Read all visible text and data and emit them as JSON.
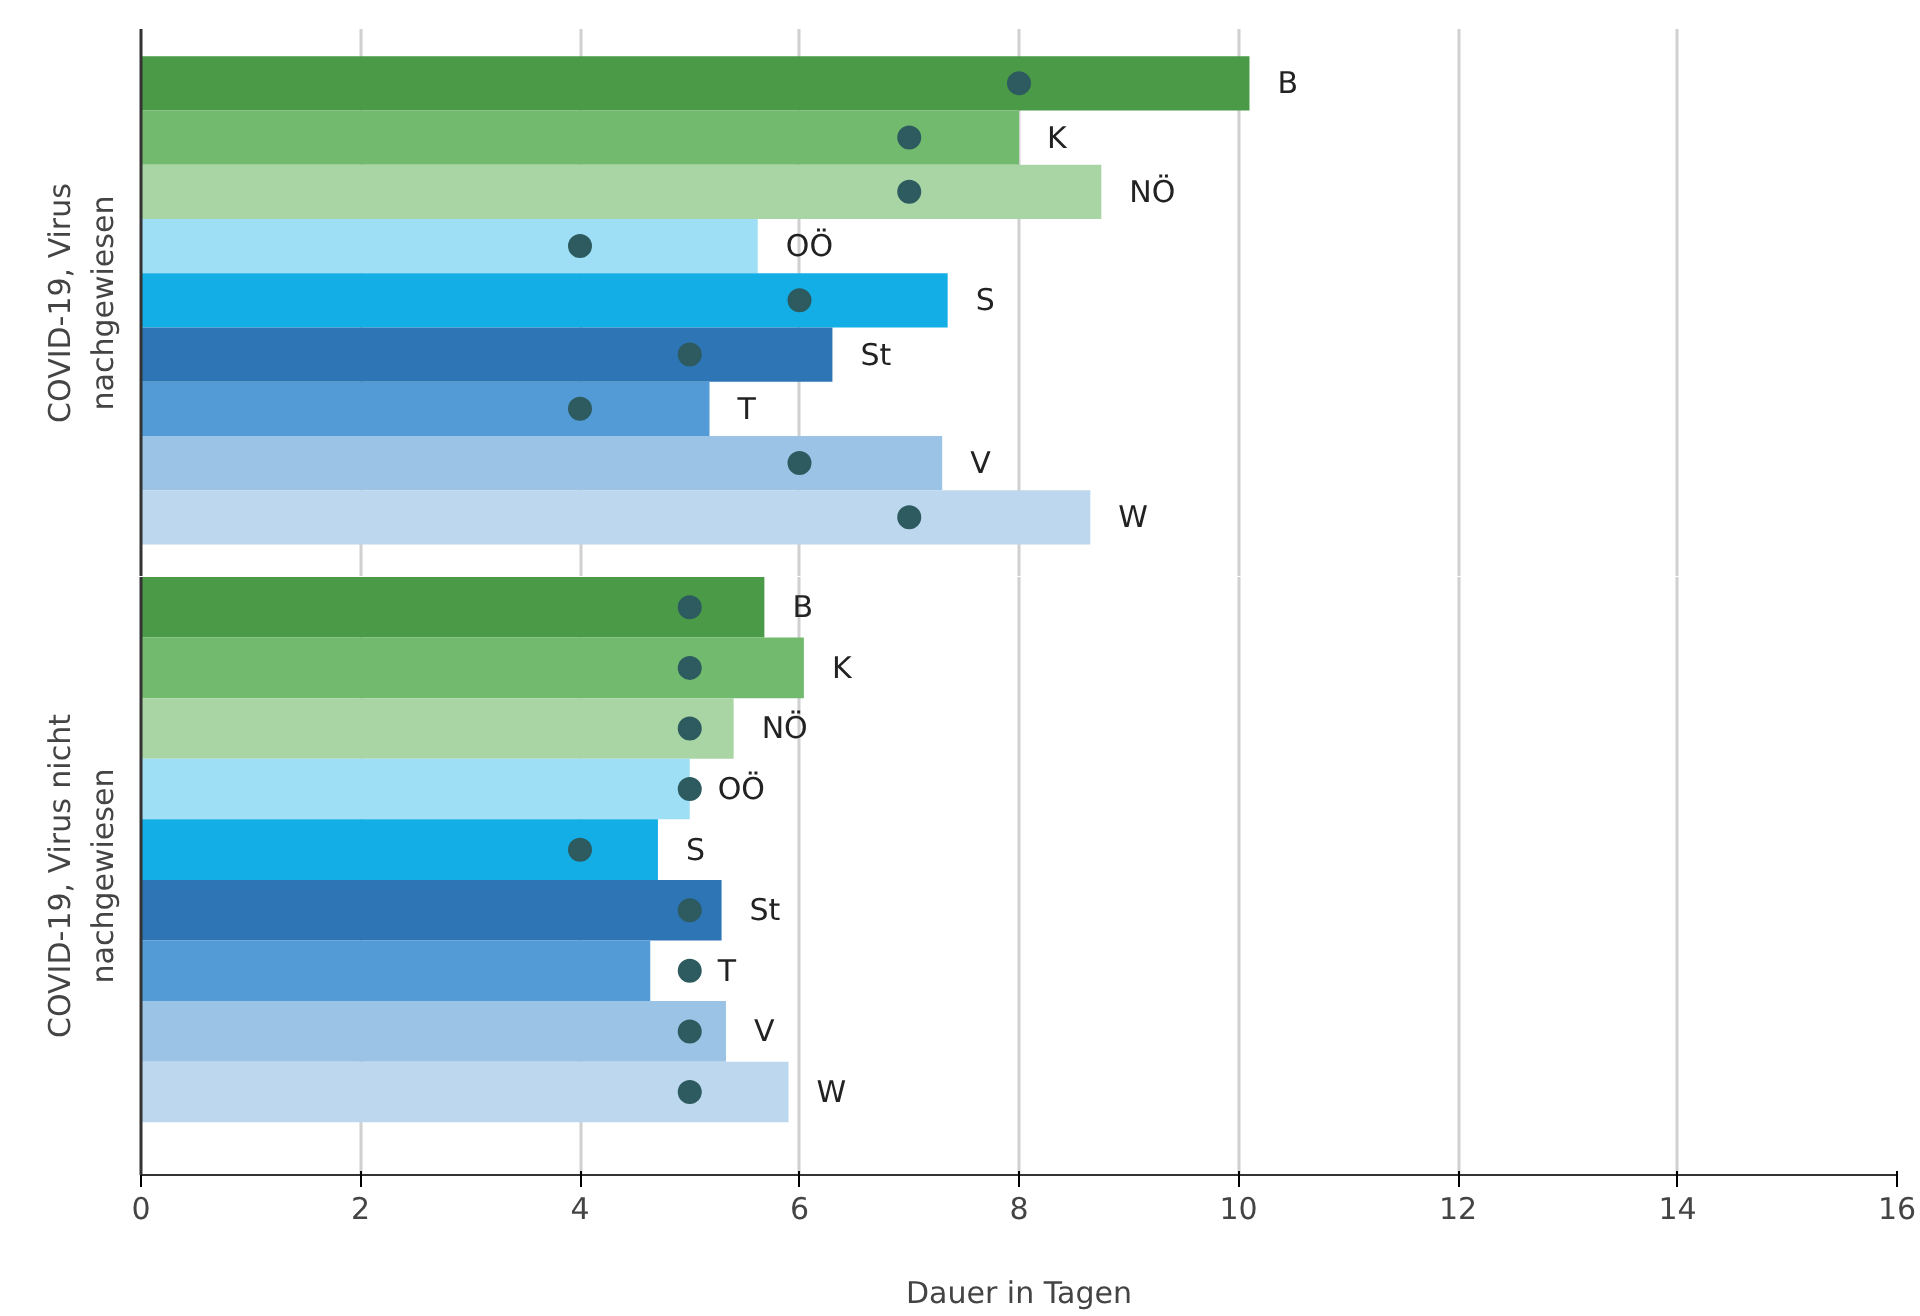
{
  "chart_data": [
    {
      "type": "bar",
      "orientation": "horizontal",
      "ylabel": "COVID-19, Virus nachgewiesen",
      "categories": [
        "B",
        "K",
        "NÖ",
        "OÖ",
        "S",
        "St",
        "T",
        "V",
        "W"
      ],
      "xlim": [
        0,
        16
      ],
      "xticks": [
        0,
        2,
        4,
        6,
        8,
        10,
        12,
        14,
        16
      ],
      "grid": "x",
      "tick_labels": false,
      "series": [
        {
          "values": [
            10.1,
            8.0,
            8.75,
            5.62,
            7.35,
            6.3,
            5.18,
            7.3,
            8.65
          ],
          "colors": [
            "#4a9a48",
            "#72bb6e",
            "#a9d5a5",
            "#9fdff5",
            "#13aee6",
            "#2e75b5",
            "#529bd6",
            "#9bc3e6",
            "#bdd7ee"
          ]
        },
        {
          "type": "scatter",
          "color": "#2d5b5f",
          "marker": "circle",
          "x": [
            "B",
            "K",
            "NÖ",
            "OÖ",
            "S",
            "St",
            "T",
            "V",
            "W"
          ],
          "values": [
            8,
            7,
            7,
            4,
            6,
            5,
            4,
            6,
            7
          ]
        }
      ]
    },
    {
      "type": "bar",
      "orientation": "horizontal",
      "ylabel": "COVID-19, Virus nicht nachgewiesen",
      "xlabel": "Dauer in Tagen",
      "categories": [
        "B",
        "K",
        "NÖ",
        "OÖ",
        "S",
        "St",
        "T",
        "V",
        "W"
      ],
      "xlim": [
        0,
        16
      ],
      "xticks": [
        0,
        2,
        4,
        6,
        8,
        10,
        12,
        14,
        16
      ],
      "grid": "x",
      "tick_labels": "x",
      "series": [
        {
          "values": [
            5.68,
            6.04,
            5.4,
            5.0,
            4.71,
            5.29,
            4.64,
            5.33,
            5.9
          ],
          "colors": [
            "#4a9a48",
            "#72bb6e",
            "#a9d5a5",
            "#9fdff5",
            "#13aee6",
            "#2e75b5",
            "#529bd6",
            "#9bc3e6",
            "#bdd7ee"
          ]
        },
        {
          "type": "scatter",
          "color": "#2d5b5f",
          "marker": "circle",
          "x": [
            "B",
            "K",
            "NÖ",
            "OÖ",
            "S",
            "St",
            "T",
            "V",
            "W"
          ],
          "values": [
            5,
            5,
            5,
            5,
            4,
            5,
            5,
            5,
            5
          ]
        }
      ]
    }
  ]
}
